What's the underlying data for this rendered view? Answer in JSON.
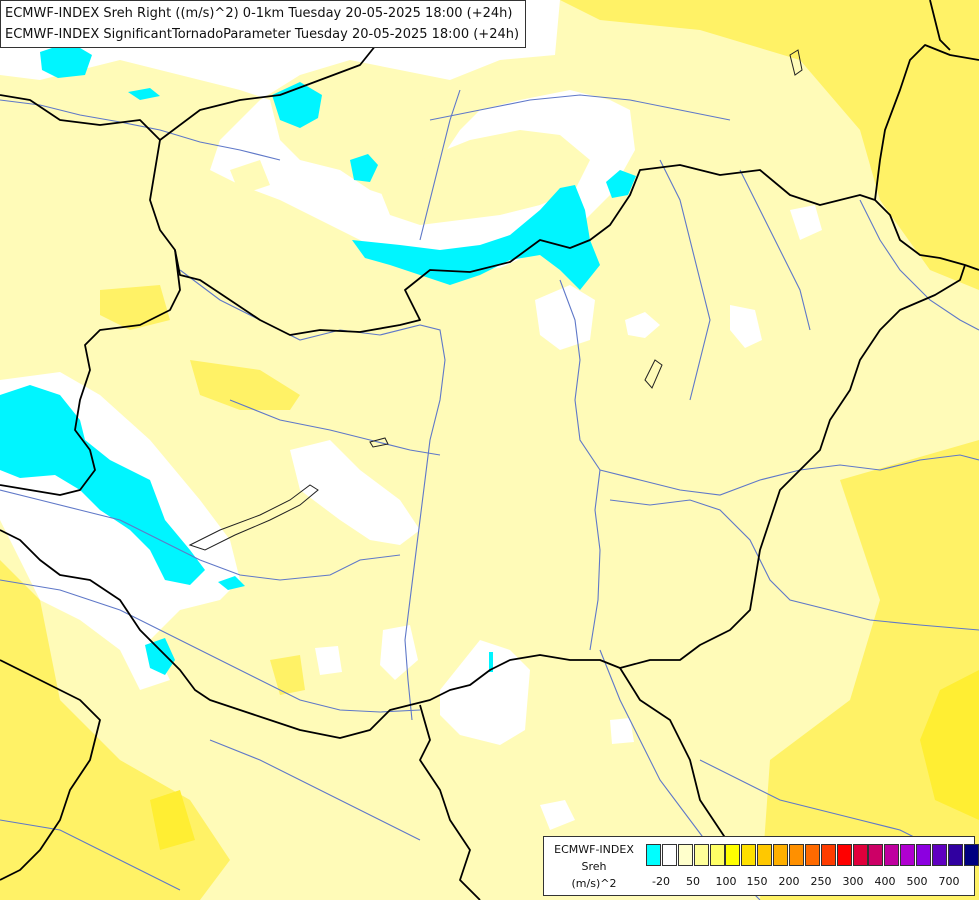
{
  "title": {
    "line1": "ECMWF-INDEX Sreh Right ((m/s)^2) 0-1km Tuesday 20-05-2025 18:00 (+24h)",
    "line2": "ECMWF-INDEX SignificantTornadoParameter Tuesday 20-05-2025 18:00 (+24h)"
  },
  "map": {
    "colors": {
      "background": "#fffbb8",
      "white_area": "#ffffff",
      "pale_yellow": "#fff9a6",
      "yellow": "#fff266",
      "cyan": "#00f5ff",
      "border": "#000000",
      "river": "#5f78c8"
    }
  },
  "legend": {
    "line1": "ECMWF-INDEX",
    "line2": "Sreh",
    "line3": "(m/s)^2",
    "colors": [
      "#00ffff",
      "#ffffff",
      "#ffffcc",
      "#ffff99",
      "#ffff66",
      "#ffff00",
      "#ffe000",
      "#ffc800",
      "#ffb000",
      "#ff9000",
      "#ff6a00",
      "#ff3c00",
      "#ff0000",
      "#e0003c",
      "#cc0066",
      "#c000a0",
      "#b000d0",
      "#8c00e0",
      "#6000c0",
      "#3000a0",
      "#000080"
    ],
    "ticks": [
      "-20",
      "50",
      "100",
      "150",
      "200",
      "250",
      "300",
      "400",
      "500",
      "700"
    ]
  }
}
